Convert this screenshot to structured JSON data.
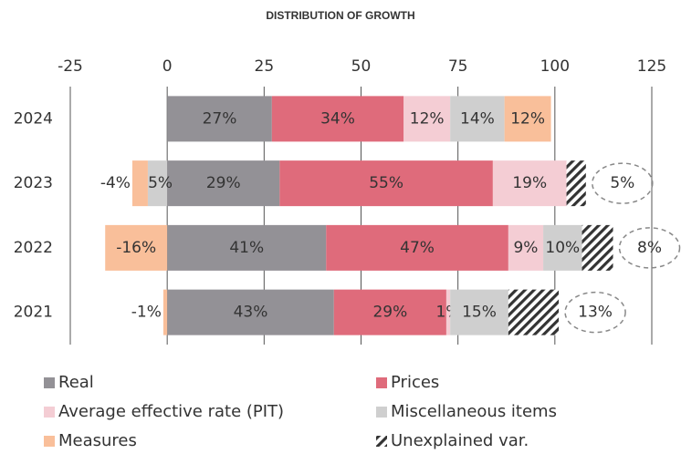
{
  "chart_data": {
    "type": "stacked-barh",
    "title": "DISTRIBUTION OF GROWTH",
    "categories": [
      "2024",
      "2023",
      "2022",
      "2021"
    ],
    "series": [
      {
        "name": "Real",
        "color": "#939196",
        "values": [
          27,
          29,
          41,
          43
        ],
        "value_labels": [
          "27%",
          "29%",
          "41%",
          "43%"
        ]
      },
      {
        "name": "Prices",
        "color": "#df6b7b",
        "values": [
          34,
          55,
          47,
          29
        ],
        "value_labels": [
          "34%",
          "55%",
          "47%",
          "29%"
        ]
      },
      {
        "name": "Average effective rate (PIT)",
        "color": "#f4cdd4",
        "values": [
          12,
          19,
          9,
          1
        ],
        "value_labels": [
          "12%",
          "19%",
          "9%",
          "1%"
        ]
      },
      {
        "name": "Miscellaneous items",
        "color": "#cfcfcf",
        "values": [
          14,
          -5,
          10,
          15
        ],
        "value_labels": [
          "14%",
          "-5%",
          "10%",
          "15%"
        ]
      },
      {
        "name": "Measures",
        "color": "#f9bf9a",
        "values": [
          12,
          -4,
          -16,
          -1
        ],
        "value_labels": [
          "12%",
          "-4%",
          "-16%",
          "-1%"
        ]
      },
      {
        "name": "Unexplained var.",
        "color": "#333333",
        "pattern": "hatch",
        "values": [
          null,
          5,
          8,
          13
        ],
        "value_labels": [
          null,
          "5%",
          "8%",
          "13%"
        ]
      }
    ],
    "xlim": [
      -25,
      125
    ],
    "xticks": [
      -25,
      0,
      25,
      50,
      75,
      100,
      125
    ],
    "grid": true
  }
}
